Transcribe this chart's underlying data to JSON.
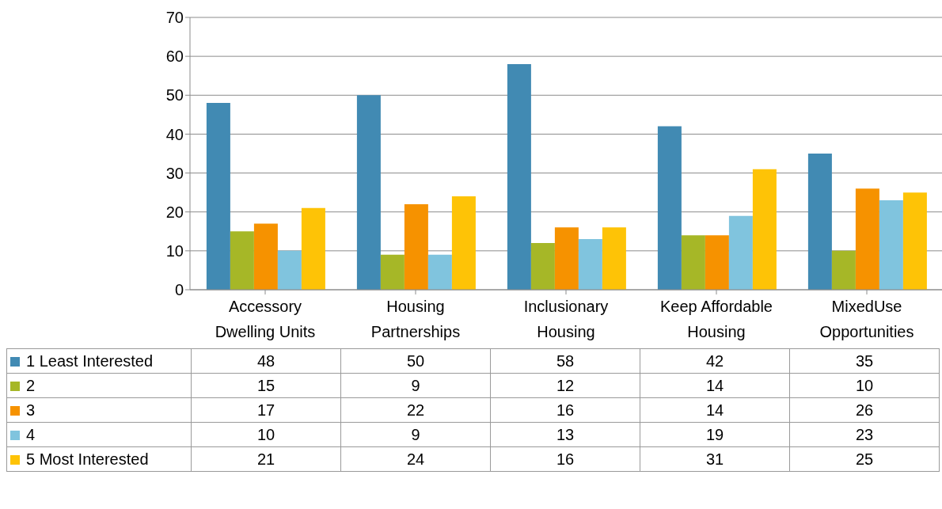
{
  "chart_data": {
    "type": "bar",
    "categories": [
      "Accessory Dwelling Units",
      "Housing Partnerships",
      "Inclusionary Housing",
      "Keep Affordable Housing",
      "MixedUse Opportunities"
    ],
    "series": [
      {
        "name": "1 Least Interested",
        "color": "#418ab3",
        "values": [
          48,
          50,
          58,
          42,
          35
        ]
      },
      {
        "name": "2",
        "color": "#a6b727",
        "values": [
          15,
          9,
          12,
          14,
          10
        ]
      },
      {
        "name": "3",
        "color": "#f69200",
        "values": [
          17,
          22,
          16,
          14,
          26
        ]
      },
      {
        "name": "4",
        "color": "#80c4de",
        "values": [
          10,
          9,
          13,
          19,
          23
        ]
      },
      {
        "name": "5 Most Interested",
        "color": "#fec306",
        "values": [
          21,
          24,
          16,
          31,
          25
        ]
      }
    ],
    "ylim": [
      0,
      70
    ],
    "yticks": [
      0,
      10,
      20,
      30,
      40,
      50,
      60,
      70
    ],
    "grid": "y",
    "legend": "bottom",
    "data_labels": true
  }
}
